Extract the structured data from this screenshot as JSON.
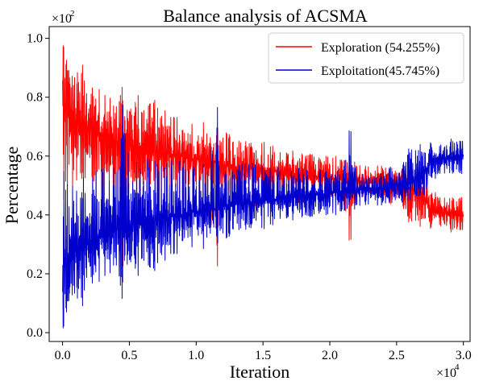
{
  "chart_data": {
    "type": "line",
    "title": "Balance analysis of ACSMA",
    "xlabel": "Iteration",
    "ylabel": "Percentage",
    "x_multiplier": "×10",
    "x_multiplier_exp": "4",
    "y_multiplier": "×10",
    "y_multiplier_exp": "2",
    "xlim": [
      -0.1,
      3.05
    ],
    "ylim": [
      -0.03,
      1.04
    ],
    "x_ticks": [
      0.0,
      0.5,
      1.0,
      1.5,
      2.0,
      2.5,
      3.0
    ],
    "x_tick_labels": [
      "0.0",
      "0.5",
      "1.0",
      "1.5",
      "2.0",
      "2.5",
      "3.0"
    ],
    "y_ticks": [
      0.0,
      0.2,
      0.4,
      0.6,
      0.8,
      1.0
    ],
    "y_tick_labels": [
      "0.0",
      "0.2",
      "0.4",
      "0.6",
      "0.8",
      "1.0"
    ],
    "grid": false,
    "legend_position": "top-right",
    "series": [
      {
        "name": "Exploration (54.255%)",
        "color": "#ff0000",
        "x": [
          0.0,
          0.05,
          0.1,
          0.15,
          0.2,
          0.25,
          0.3,
          0.35,
          0.4,
          0.45,
          0.5,
          0.55,
          0.6,
          0.65,
          0.7,
          0.75,
          0.8,
          0.85,
          0.9,
          0.95,
          1.0,
          1.05,
          1.1,
          1.15,
          1.2,
          1.25,
          1.3,
          1.35,
          1.4,
          1.45,
          1.5,
          1.55,
          1.6,
          1.65,
          1.7,
          1.75,
          1.8,
          1.85,
          1.9,
          1.95,
          2.0,
          2.05,
          2.1,
          2.15,
          2.2,
          2.25,
          2.3,
          2.35,
          2.4,
          2.45,
          2.5,
          2.55,
          2.6,
          2.65,
          2.7,
          2.75,
          2.8,
          2.85,
          2.9,
          2.95,
          3.0
        ],
        "mean": [
          0.78,
          0.75,
          0.72,
          0.7,
          0.69,
          0.68,
          0.67,
          0.66,
          0.65,
          0.64,
          0.64,
          0.63,
          0.63,
          0.62,
          0.62,
          0.61,
          0.61,
          0.6,
          0.6,
          0.59,
          0.59,
          0.58,
          0.58,
          0.58,
          0.57,
          0.57,
          0.56,
          0.56,
          0.56,
          0.55,
          0.55,
          0.55,
          0.55,
          0.54,
          0.54,
          0.54,
          0.54,
          0.53,
          0.53,
          0.53,
          0.53,
          0.52,
          0.52,
          0.52,
          0.52,
          0.51,
          0.51,
          0.51,
          0.51,
          0.5,
          0.5,
          0.5,
          0.49,
          0.48,
          0.47,
          0.42,
          0.41,
          0.41,
          0.41,
          0.4,
          0.4
        ],
        "max": [
          0.99,
          0.9,
          0.88,
          0.93,
          0.85,
          0.84,
          0.82,
          0.8,
          0.8,
          0.86,
          0.8,
          0.82,
          0.78,
          0.8,
          0.8,
          0.76,
          0.76,
          0.74,
          0.73,
          0.72,
          0.72,
          0.72,
          0.68,
          0.7,
          0.68,
          0.7,
          0.67,
          0.66,
          0.66,
          0.64,
          0.66,
          0.64,
          0.63,
          0.63,
          0.62,
          0.62,
          0.61,
          0.61,
          0.6,
          0.6,
          0.6,
          0.6,
          0.59,
          0.58,
          0.58,
          0.57,
          0.57,
          0.57,
          0.57,
          0.57,
          0.56,
          0.56,
          0.55,
          0.55,
          0.54,
          0.5,
          0.48,
          0.47,
          0.47,
          0.46,
          0.46
        ],
        "min": [
          0.38,
          0.5,
          0.48,
          0.42,
          0.45,
          0.45,
          0.42,
          0.44,
          0.43,
          0.18,
          0.42,
          0.42,
          0.41,
          0.4,
          0.42,
          0.42,
          0.41,
          0.41,
          0.4,
          0.4,
          0.4,
          0.42,
          0.42,
          0.17,
          0.43,
          0.42,
          0.42,
          0.42,
          0.42,
          0.43,
          0.43,
          0.43,
          0.43,
          0.44,
          0.44,
          0.44,
          0.44,
          0.44,
          0.45,
          0.44,
          0.45,
          0.45,
          0.45,
          0.29,
          0.45,
          0.46,
          0.46,
          0.46,
          0.45,
          0.43,
          0.44,
          0.42,
          0.35,
          0.37,
          0.35,
          0.35,
          0.35,
          0.35,
          0.34,
          0.34,
          0.34
        ]
      },
      {
        "name": "Exploitation(45.745%)",
        "color": "#0000cc",
        "x": [
          0.0,
          0.05,
          0.1,
          0.15,
          0.2,
          0.25,
          0.3,
          0.35,
          0.4,
          0.45,
          0.5,
          0.55,
          0.6,
          0.65,
          0.7,
          0.75,
          0.8,
          0.85,
          0.9,
          0.95,
          1.0,
          1.05,
          1.1,
          1.15,
          1.2,
          1.25,
          1.3,
          1.35,
          1.4,
          1.45,
          1.5,
          1.55,
          1.6,
          1.65,
          1.7,
          1.75,
          1.8,
          1.85,
          1.9,
          1.95,
          2.0,
          2.05,
          2.1,
          2.15,
          2.2,
          2.25,
          2.3,
          2.35,
          2.4,
          2.45,
          2.5,
          2.55,
          2.6,
          2.65,
          2.7,
          2.75,
          2.8,
          2.85,
          2.9,
          2.95,
          3.0
        ],
        "mean": [
          0.22,
          0.25,
          0.28,
          0.3,
          0.31,
          0.32,
          0.33,
          0.34,
          0.35,
          0.36,
          0.36,
          0.37,
          0.37,
          0.38,
          0.38,
          0.39,
          0.39,
          0.4,
          0.4,
          0.41,
          0.41,
          0.42,
          0.42,
          0.42,
          0.43,
          0.43,
          0.44,
          0.44,
          0.44,
          0.45,
          0.45,
          0.45,
          0.45,
          0.46,
          0.46,
          0.46,
          0.46,
          0.47,
          0.47,
          0.47,
          0.47,
          0.48,
          0.48,
          0.48,
          0.48,
          0.49,
          0.49,
          0.49,
          0.49,
          0.5,
          0.5,
          0.5,
          0.51,
          0.52,
          0.53,
          0.58,
          0.59,
          0.59,
          0.59,
          0.6,
          0.6
        ],
        "max": [
          0.62,
          0.5,
          0.52,
          0.58,
          0.55,
          0.55,
          0.58,
          0.56,
          0.57,
          0.82,
          0.58,
          0.58,
          0.59,
          0.6,
          0.58,
          0.58,
          0.59,
          0.59,
          0.6,
          0.6,
          0.6,
          0.58,
          0.58,
          0.82,
          0.57,
          0.58,
          0.58,
          0.58,
          0.58,
          0.57,
          0.57,
          0.57,
          0.57,
          0.56,
          0.56,
          0.56,
          0.56,
          0.56,
          0.55,
          0.56,
          0.55,
          0.55,
          0.55,
          0.71,
          0.55,
          0.54,
          0.54,
          0.54,
          0.55,
          0.57,
          0.56,
          0.58,
          0.65,
          0.63,
          0.65,
          0.65,
          0.65,
          0.65,
          0.66,
          0.66,
          0.66
        ],
        "min": [
          0.0,
          0.1,
          0.12,
          0.07,
          0.15,
          0.16,
          0.18,
          0.2,
          0.2,
          0.08,
          0.2,
          0.18,
          0.22,
          0.2,
          0.2,
          0.24,
          0.24,
          0.26,
          0.27,
          0.28,
          0.28,
          0.28,
          0.32,
          0.3,
          0.32,
          0.3,
          0.33,
          0.34,
          0.34,
          0.36,
          0.34,
          0.36,
          0.37,
          0.37,
          0.38,
          0.38,
          0.39,
          0.39,
          0.4,
          0.4,
          0.4,
          0.4,
          0.41,
          0.42,
          0.42,
          0.43,
          0.43,
          0.43,
          0.43,
          0.43,
          0.44,
          0.44,
          0.45,
          0.45,
          0.46,
          0.5,
          0.52,
          0.53,
          0.53,
          0.54,
          0.54
        ]
      }
    ]
  }
}
